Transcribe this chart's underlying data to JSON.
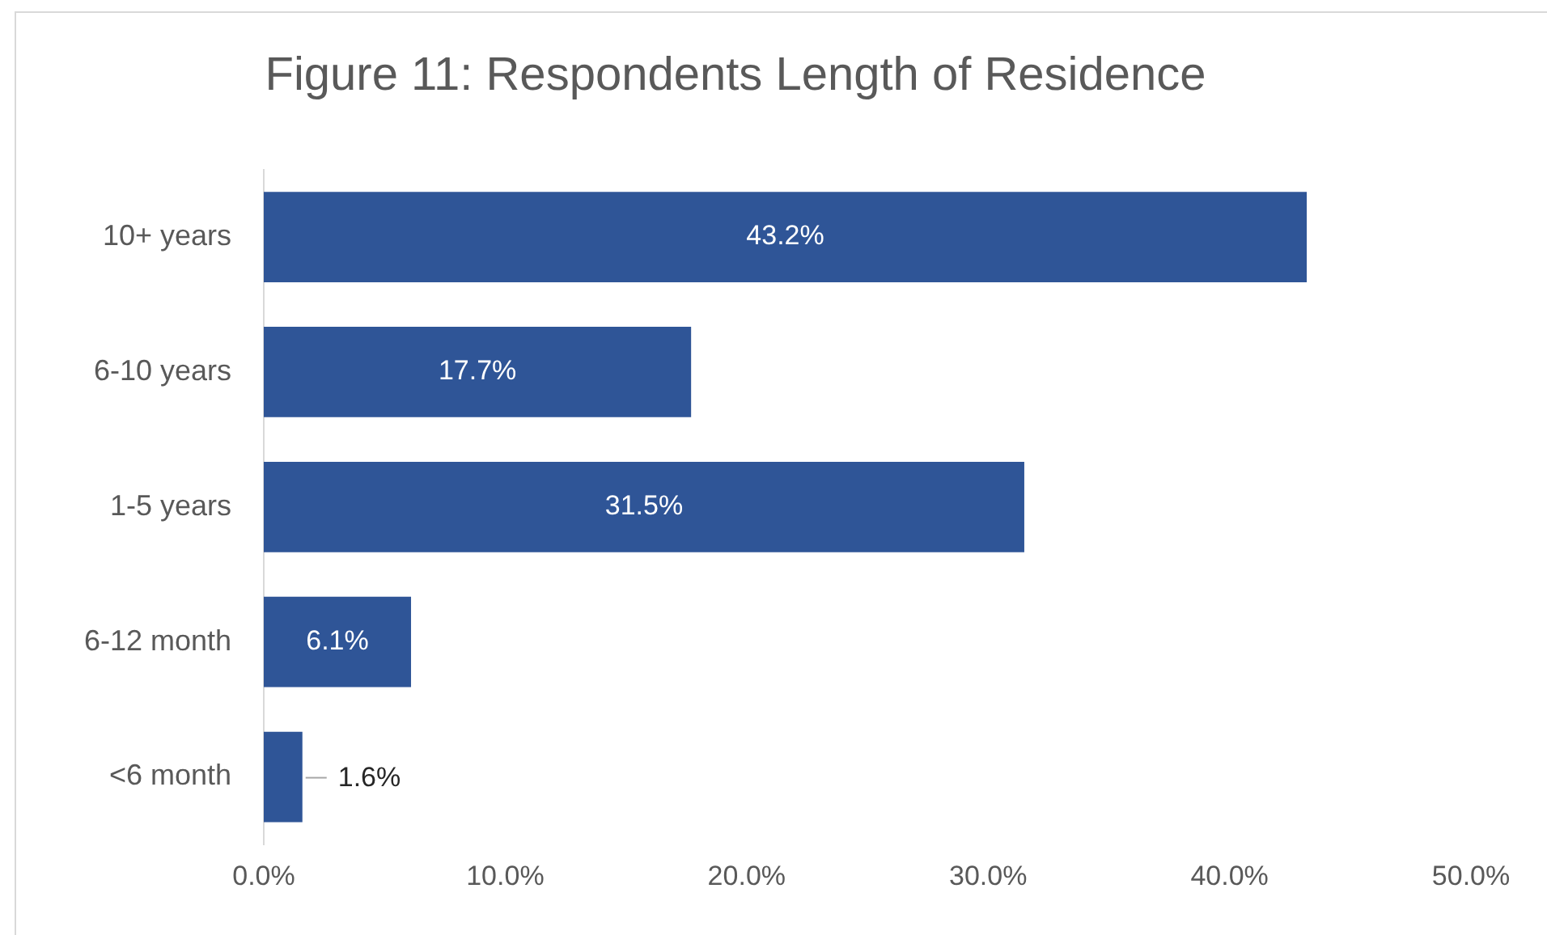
{
  "chart_data": {
    "type": "bar",
    "orientation": "horizontal",
    "title": "Figure 11: Respondents Length of Residence",
    "categories": [
      "10+ years",
      "6-10 years",
      "1-5 years",
      "6-12 month",
      "<6 month"
    ],
    "values": [
      43.2,
      17.7,
      31.5,
      6.1,
      1.6
    ],
    "value_labels": [
      "43.2%",
      "17.7%",
      "31.5%",
      "6.1%",
      "1.6%"
    ],
    "color": "#2f5597",
    "xlim": [
      0,
      50
    ],
    "xticks": [
      {
        "value": 0,
        "label": "0.0%"
      },
      {
        "value": 10,
        "label": "10.0%"
      },
      {
        "value": 20,
        "label": "20.0%"
      },
      {
        "value": 30,
        "label": "30.0%"
      },
      {
        "value": 40,
        "label": "40.0%"
      },
      {
        "value": 50,
        "label": "50.0%"
      }
    ],
    "grid": false,
    "legend": false
  }
}
